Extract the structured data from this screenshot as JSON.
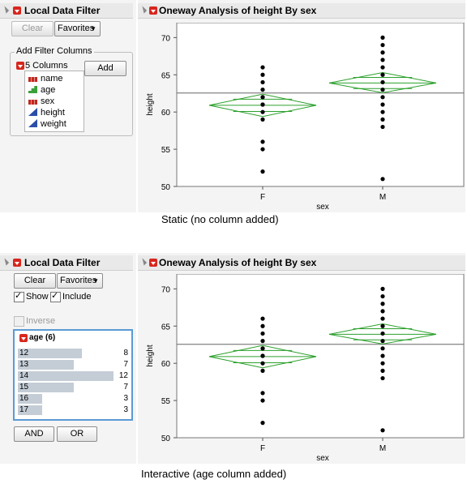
{
  "panel1": {
    "filter_title": "Local Data Filter",
    "clear_label": "Clear",
    "favorites_label": "Favorites",
    "add_filter_legend": "Add Filter Columns",
    "columns_label": "5 Columns",
    "add_label": "Add",
    "columns": [
      {
        "name": "name",
        "type": "nominal"
      },
      {
        "name": "age",
        "type": "ordinal"
      },
      {
        "name": "sex",
        "type": "nominal"
      },
      {
        "name": "height",
        "type": "continuous"
      },
      {
        "name": "weight",
        "type": "continuous"
      }
    ],
    "report_title": "Oneway Analysis of height By sex",
    "caption": "Static (no column added)"
  },
  "panel2": {
    "filter_title": "Local Data Filter",
    "clear_label": "Clear",
    "favorites_label": "Favorites",
    "show_label": "Show",
    "include_label": "Include",
    "inverse_label": "Inverse",
    "age_title": "age (6)",
    "age_levels": [
      {
        "label": "12",
        "count": "8"
      },
      {
        "label": "13",
        "count": "7"
      },
      {
        "label": "14",
        "count": "12"
      },
      {
        "label": "15",
        "count": "7"
      },
      {
        "label": "16",
        "count": "3"
      },
      {
        "label": "17",
        "count": "3"
      }
    ],
    "and_label": "AND",
    "or_label": "OR",
    "report_title": "Oneway Analysis of height By sex",
    "caption": "Interactive (age column added)"
  },
  "chart_data": [
    {
      "type": "scatter",
      "title": "",
      "xlabel": "sex",
      "ylabel": "height",
      "categories": [
        "F",
        "M"
      ],
      "ylim": [
        50,
        72
      ],
      "yticks": [
        50,
        55,
        60,
        65,
        70
      ],
      "grand_mean": 62.55,
      "groups": [
        {
          "name": "F",
          "values": [
            52,
            55,
            56,
            59,
            60,
            61,
            61,
            62,
            62,
            63,
            64,
            65,
            66
          ],
          "mean": 60.9,
          "ci": [
            59.4,
            62.4
          ]
        },
        {
          "name": "M",
          "values": [
            51,
            58,
            59,
            60,
            61,
            62,
            63,
            64,
            65,
            66,
            67,
            68,
            69,
            70
          ],
          "mean": 63.9,
          "ci": [
            62.6,
            65.3
          ]
        }
      ],
      "accent_color": "#2ca02c"
    },
    {
      "type": "scatter",
      "title": "",
      "xlabel": "sex",
      "ylabel": "height",
      "categories": [
        "F",
        "M"
      ],
      "ylim": [
        50,
        72
      ],
      "yticks": [
        50,
        55,
        60,
        65,
        70
      ],
      "grand_mean": 62.55,
      "groups": [
        {
          "name": "F",
          "values": [
            52,
            55,
            56,
            59,
            60,
            61,
            61,
            62,
            62,
            63,
            64,
            65,
            66
          ],
          "mean": 60.9,
          "ci": [
            59.4,
            62.4
          ]
        },
        {
          "name": "M",
          "values": [
            51,
            58,
            59,
            60,
            61,
            62,
            63,
            64,
            65,
            66,
            67,
            68,
            69,
            70
          ],
          "mean": 63.9,
          "ci": [
            62.6,
            65.3
          ]
        }
      ],
      "accent_color": "#2ca02c"
    }
  ]
}
